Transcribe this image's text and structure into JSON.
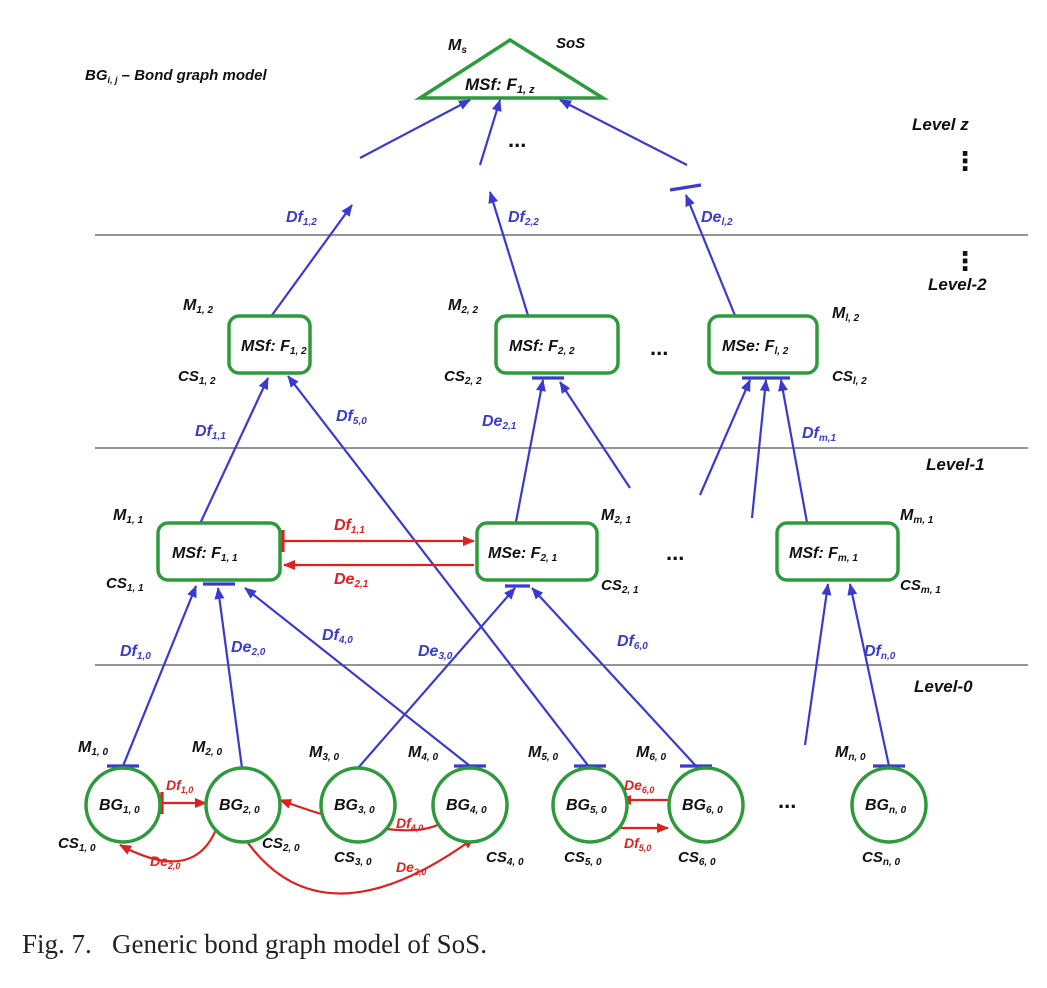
{
  "colors": {
    "blue": "#3a3ad0",
    "red": "#e02020",
    "green": "#2e9a3c",
    "black": "#111111"
  },
  "legend": {
    "prefix": "BG",
    "sub": "i, j",
    "suffix": " – Bond graph model"
  },
  "caption": "Fig. 7.   Generic bond graph model of SoS.",
  "levels": {
    "z": "Level z",
    "two": "Level-2",
    "one": "Level-1",
    "zero": "Level-0",
    "vdots": "⋮"
  },
  "top": {
    "ms": {
      "main": "M",
      "sub": "s"
    },
    "sos": "SoS",
    "label": {
      "pre": "MSf: ",
      "main": "F",
      "sub": "1, z"
    }
  },
  "ellipsis": "...",
  "boxes": {
    "l2_1": {
      "pre": "MSf: ",
      "main": "F",
      "sub": "1, 2"
    },
    "l2_2": {
      "pre": "MSf: ",
      "main": "F",
      "sub": "2, 2"
    },
    "l2_3": {
      "pre": "MSe: ",
      "main": "F",
      "sub": "l, 2"
    },
    "l1_1": {
      "pre": "MSf: ",
      "main": "F",
      "sub": "1, 1"
    },
    "l1_2": {
      "pre": "MSe: ",
      "main": "F",
      "sub": "2, 1"
    },
    "l1_3": {
      "pre": "MSf: ",
      "main": "F",
      "sub": "m, 1"
    }
  },
  "circles": {
    "c1": {
      "main": "BG",
      "sub": "1, 0"
    },
    "c2": {
      "main": "BG",
      "sub": "2, 0"
    },
    "c3": {
      "main": "BG",
      "sub": "3, 0"
    },
    "c4": {
      "main": "BG",
      "sub": "4, 0"
    },
    "c5": {
      "main": "BG",
      "sub": "5, 0"
    },
    "c6": {
      "main": "BG",
      "sub": "6, 0"
    },
    "cn": {
      "main": "BG",
      "sub": "n, 0"
    }
  },
  "mlabels": {
    "m12": {
      "main": "M",
      "sub": "1, 2"
    },
    "m22": {
      "main": "M",
      "sub": "2, 2"
    },
    "ml2": {
      "main": "M",
      "sub": "l, 2"
    },
    "m11": {
      "main": "M",
      "sub": "1, 1"
    },
    "m21": {
      "main": "M",
      "sub": "2, 1"
    },
    "mm1": {
      "main": "M",
      "sub": "m, 1"
    },
    "m10": {
      "main": "M",
      "sub": "1, 0"
    },
    "m20": {
      "main": "M",
      "sub": "2, 0"
    },
    "m30": {
      "main": "M",
      "sub": "3, 0"
    },
    "m40": {
      "main": "M",
      "sub": "4, 0"
    },
    "m50": {
      "main": "M",
      "sub": "5, 0"
    },
    "m60": {
      "main": "M",
      "sub": "6, 0"
    },
    "mn0": {
      "main": "M",
      "sub": "n, 0"
    }
  },
  "cslabels": {
    "cs12": {
      "main": "CS",
      "sub": "1, 2"
    },
    "cs22": {
      "main": "CS",
      "sub": "2, 2"
    },
    "csl2": {
      "main": "CS",
      "sub": "l, 2"
    },
    "cs11": {
      "main": "CS",
      "sub": "1, 1"
    },
    "cs21": {
      "main": "CS",
      "sub": "2, 1"
    },
    "csm1": {
      "main": "CS",
      "sub": "m, 1"
    },
    "cs10": {
      "main": "CS",
      "sub": "1, 0"
    },
    "cs20": {
      "main": "CS",
      "sub": "2, 0"
    },
    "cs30": {
      "main": "CS",
      "sub": "3, 0"
    },
    "cs40": {
      "main": "CS",
      "sub": "4, 0"
    },
    "cs50": {
      "main": "CS",
      "sub": "5, 0"
    },
    "cs60": {
      "main": "CS",
      "sub": "6, 0"
    },
    "csn0": {
      "main": "CS",
      "sub": "n, 0"
    }
  },
  "signals": {
    "df12": {
      "main": "Df",
      "sub": "1,2"
    },
    "df22": {
      "main": "Df",
      "sub": "2,2"
    },
    "del2": {
      "main": "De",
      "sub": "l,2"
    },
    "df11_up": {
      "main": "Df",
      "sub": "1,1"
    },
    "df50": {
      "main": "Df",
      "sub": "5,0"
    },
    "de21_up": {
      "main": "De",
      "sub": "2,1"
    },
    "dfm1": {
      "main": "Df",
      "sub": "m,1"
    },
    "df11_red": {
      "main": "Df",
      "sub": "1,1"
    },
    "de21_red": {
      "main": "De",
      "sub": "2,1"
    },
    "df10": {
      "main": "Df",
      "sub": "1,0"
    },
    "de20": {
      "main": "De",
      "sub": "2,0"
    },
    "df40": {
      "main": "Df",
      "sub": "4,0"
    },
    "de30": {
      "main": "De",
      "sub": "3,0"
    },
    "df60": {
      "main": "Df",
      "sub": "6,0"
    },
    "dfn0": {
      "main": "Df",
      "sub": "n,0"
    },
    "df10_red": {
      "main": "Df",
      "sub": "1,0"
    },
    "de20_red_a": {
      "main": "De",
      "sub": "2,0"
    },
    "df40_red": {
      "main": "Df",
      "sub": "4,0"
    },
    "de20_red_b": {
      "main": "De",
      "sub": "2,0"
    },
    "de60_red": {
      "main": "De",
      "sub": "6,0"
    },
    "df50_red": {
      "main": "Df",
      "sub": "5,0"
    }
  }
}
